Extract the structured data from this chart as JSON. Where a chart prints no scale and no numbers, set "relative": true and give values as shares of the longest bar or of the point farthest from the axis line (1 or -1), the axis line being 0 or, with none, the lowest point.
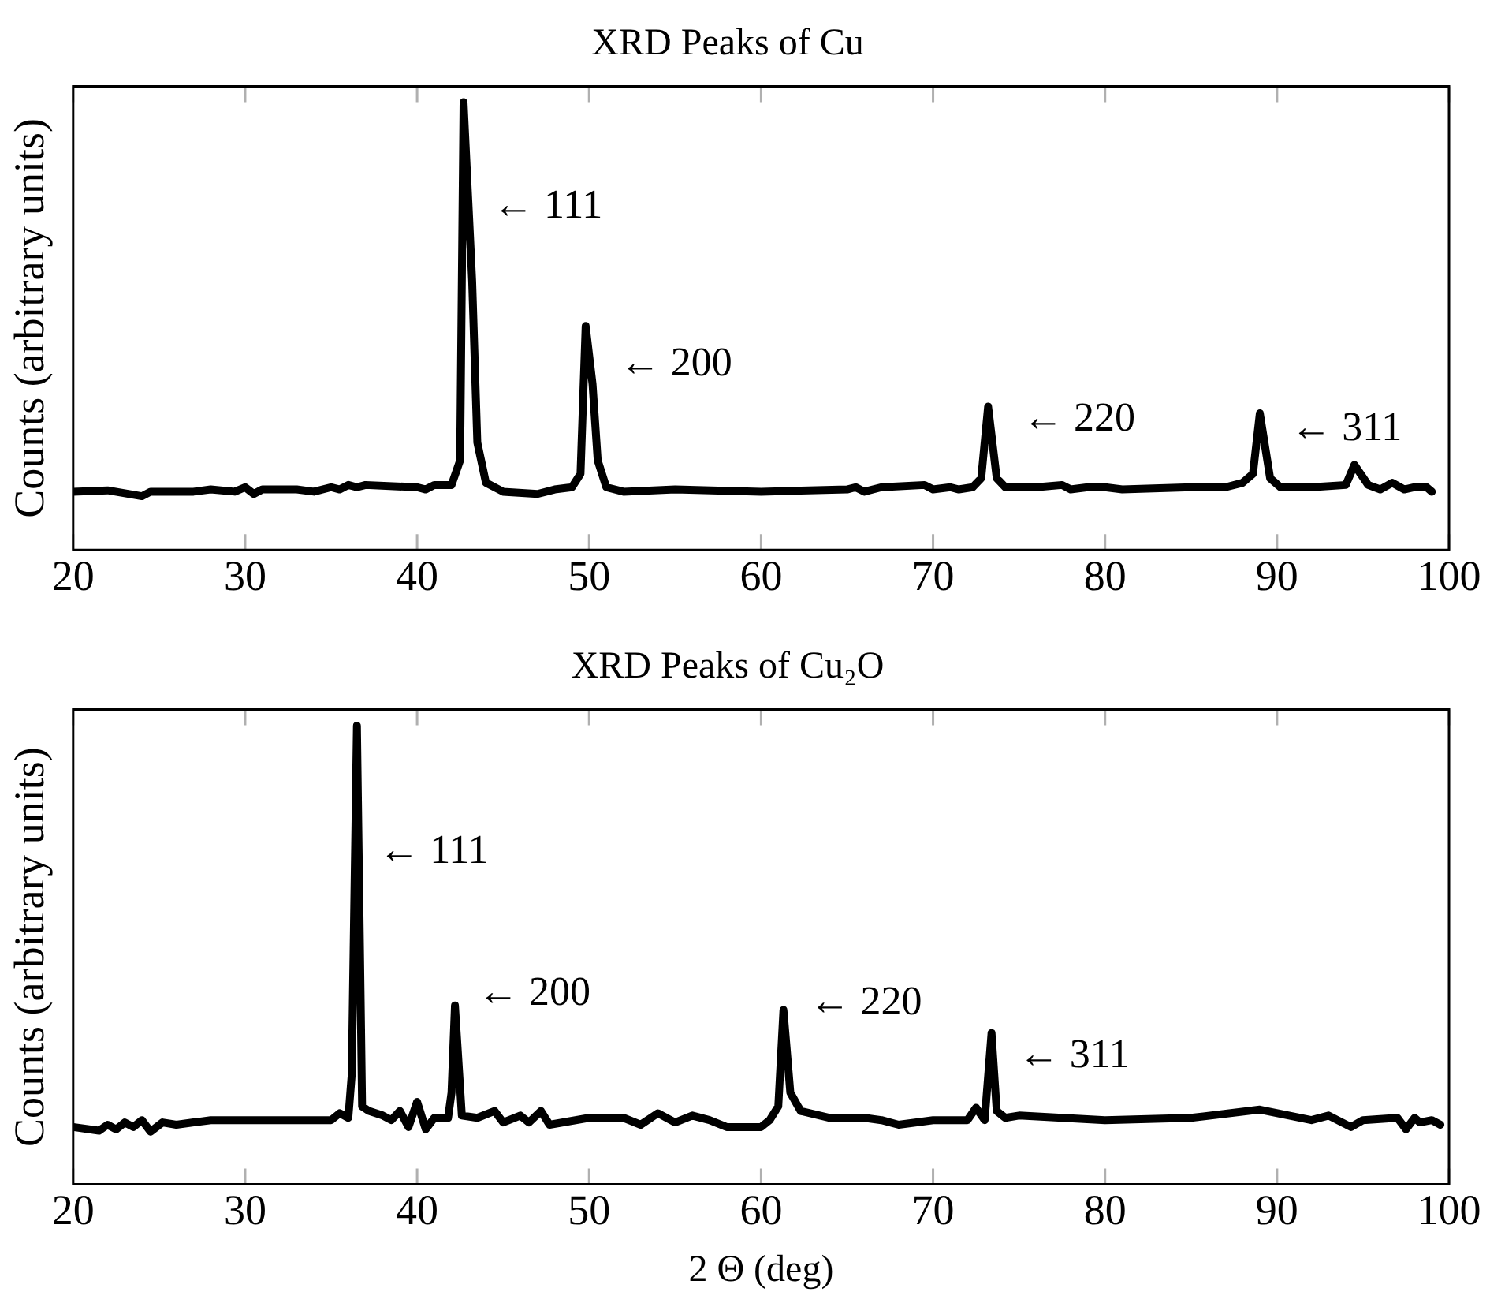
{
  "chart_data": [
    {
      "type": "line",
      "title": "XRD Peaks of Cu",
      "ylabel": "Counts (arbitrary units)",
      "relative": true,
      "grid": false,
      "legend": false,
      "marker": "none",
      "line_style": "solid",
      "xlim": [
        20,
        100
      ],
      "xticks": [
        20,
        30,
        40,
        50,
        60,
        70,
        80,
        90,
        100
      ],
      "annotations": [
        "← 111",
        "← 200",
        "← 220",
        "← 311"
      ],
      "series": [
        {
          "color": "#000000",
          "x": [
            20,
            22,
            24,
            24.5,
            27,
            28,
            29.4,
            30,
            30.5,
            31,
            33,
            34,
            35,
            35.5,
            36,
            36.5,
            37,
            40,
            40.5,
            41,
            42,
            42.5,
            42.7,
            43.2,
            43.5,
            44,
            45,
            47,
            48,
            49,
            49.5,
            49.8,
            50.2,
            50.5,
            51,
            52,
            55,
            60,
            65,
            65.5,
            66,
            67,
            69.5,
            70,
            71,
            71.5,
            72.3,
            72.8,
            73.2,
            73.7,
            74.2,
            76,
            77.5,
            78,
            79,
            80,
            81,
            85,
            87,
            88,
            88.6,
            89,
            89.6,
            90.2,
            92,
            94,
            94.5,
            95.3,
            96,
            96.7,
            97.4,
            98,
            98.7,
            99
          ],
          "values": [
            0.13,
            0.133,
            0.12,
            0.13,
            0.13,
            0.135,
            0.13,
            0.14,
            0.125,
            0.135,
            0.135,
            0.13,
            0.14,
            0.135,
            0.145,
            0.14,
            0.145,
            0.14,
            0.135,
            0.145,
            0.145,
            0.2,
            1.0,
            0.6,
            0.24,
            0.15,
            0.13,
            0.125,
            0.135,
            0.14,
            0.17,
            0.5,
            0.37,
            0.2,
            0.14,
            0.13,
            0.135,
            0.13,
            0.135,
            0.14,
            0.13,
            0.14,
            0.145,
            0.135,
            0.14,
            0.135,
            0.14,
            0.16,
            0.32,
            0.16,
            0.14,
            0.14,
            0.145,
            0.135,
            0.14,
            0.14,
            0.135,
            0.14,
            0.14,
            0.15,
            0.17,
            0.305,
            0.16,
            0.14,
            0.14,
            0.145,
            0.19,
            0.145,
            0.135,
            0.15,
            0.135,
            0.14,
            0.14,
            0.13
          ]
        }
      ]
    },
    {
      "type": "line",
      "title": "XRD Peaks of Cu₂O",
      "xlabel": "2 Θ (deg)",
      "ylabel": "Counts (arbitrary units)",
      "relative": true,
      "grid": false,
      "legend": false,
      "marker": "none",
      "line_style": "solid",
      "xlim": [
        20,
        100
      ],
      "xticks": [
        20,
        30,
        40,
        50,
        60,
        70,
        80,
        90,
        100
      ],
      "annotations": [
        "← 111",
        "← 200",
        "← 220",
        "← 311"
      ],
      "series": [
        {
          "color": "#000000",
          "x": [
            20,
            21.5,
            22,
            22.5,
            23,
            23.5,
            24,
            24.5,
            25.2,
            26,
            27,
            28,
            35,
            35.5,
            36,
            36.2,
            36.5,
            36.8,
            37.2,
            38,
            38.5,
            39,
            39.5,
            40,
            40.5,
            41,
            41.8,
            42,
            42.2,
            42.6,
            43.5,
            44.5,
            45,
            46,
            46.5,
            47.2,
            47.7,
            50,
            52,
            53,
            54,
            55,
            56,
            57,
            58,
            60,
            60.5,
            61,
            61.3,
            61.7,
            62.3,
            64,
            66,
            67,
            68,
            70,
            72,
            72.5,
            73,
            73.4,
            73.7,
            74.2,
            75,
            80,
            85,
            89,
            92,
            93,
            94.3,
            95,
            97,
            97.5,
            98,
            98.3,
            99,
            99.5
          ],
          "values": [
            0.125,
            0.117,
            0.13,
            0.12,
            0.135,
            0.125,
            0.14,
            0.115,
            0.135,
            0.13,
            0.135,
            0.14,
            0.14,
            0.155,
            0.145,
            0.24,
            1.0,
            0.17,
            0.16,
            0.15,
            0.14,
            0.16,
            0.125,
            0.18,
            0.12,
            0.145,
            0.145,
            0.2,
            0.39,
            0.15,
            0.145,
            0.16,
            0.135,
            0.15,
            0.135,
            0.16,
            0.13,
            0.145,
            0.145,
            0.13,
            0.155,
            0.135,
            0.15,
            0.14,
            0.125,
            0.125,
            0.14,
            0.17,
            0.38,
            0.2,
            0.16,
            0.145,
            0.145,
            0.14,
            0.13,
            0.14,
            0.14,
            0.167,
            0.14,
            0.33,
            0.16,
            0.145,
            0.15,
            0.14,
            0.145,
            0.163,
            0.14,
            0.15,
            0.125,
            0.14,
            0.145,
            0.12,
            0.145,
            0.135,
            0.14,
            0.13
          ]
        }
      ]
    }
  ]
}
